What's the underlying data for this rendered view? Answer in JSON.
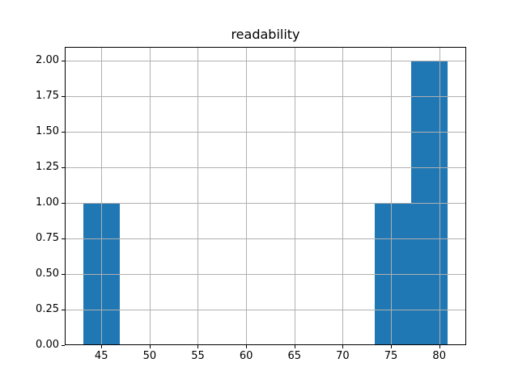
{
  "chart_data": {
    "type": "bar",
    "subtype": "histogram",
    "title": "readability",
    "xlabel": "",
    "ylabel": "",
    "bin_edges": [
      43.1,
      46.88,
      50.66,
      54.44,
      58.22,
      62.0,
      65.78,
      69.56,
      73.34,
      77.12,
      80.9
    ],
    "counts": [
      1,
      0,
      0,
      0,
      0,
      0,
      0,
      0,
      1,
      2
    ],
    "xlim": [
      41.21,
      82.79
    ],
    "ylim": [
      0,
      2.1
    ],
    "x_ticks": [
      45,
      50,
      55,
      60,
      65,
      70,
      75,
      80
    ],
    "x_tick_labels": [
      "45",
      "50",
      "55",
      "60",
      "65",
      "70",
      "75",
      "80"
    ],
    "y_ticks": [
      0,
      0.25,
      0.5,
      0.75,
      1.0,
      1.25,
      1.5,
      1.75,
      2.0
    ],
    "y_tick_labels": [
      "0.00",
      "0.25",
      "0.50",
      "0.75",
      "1.00",
      "1.25",
      "1.50",
      "1.75",
      "2.00"
    ],
    "grid": true,
    "grid_on_top": true,
    "legend": "none",
    "bar_color": "#1f77b4",
    "grid_color": "#b0b0b0",
    "spine_color": "#000000",
    "background_color": "#ffffff"
  }
}
